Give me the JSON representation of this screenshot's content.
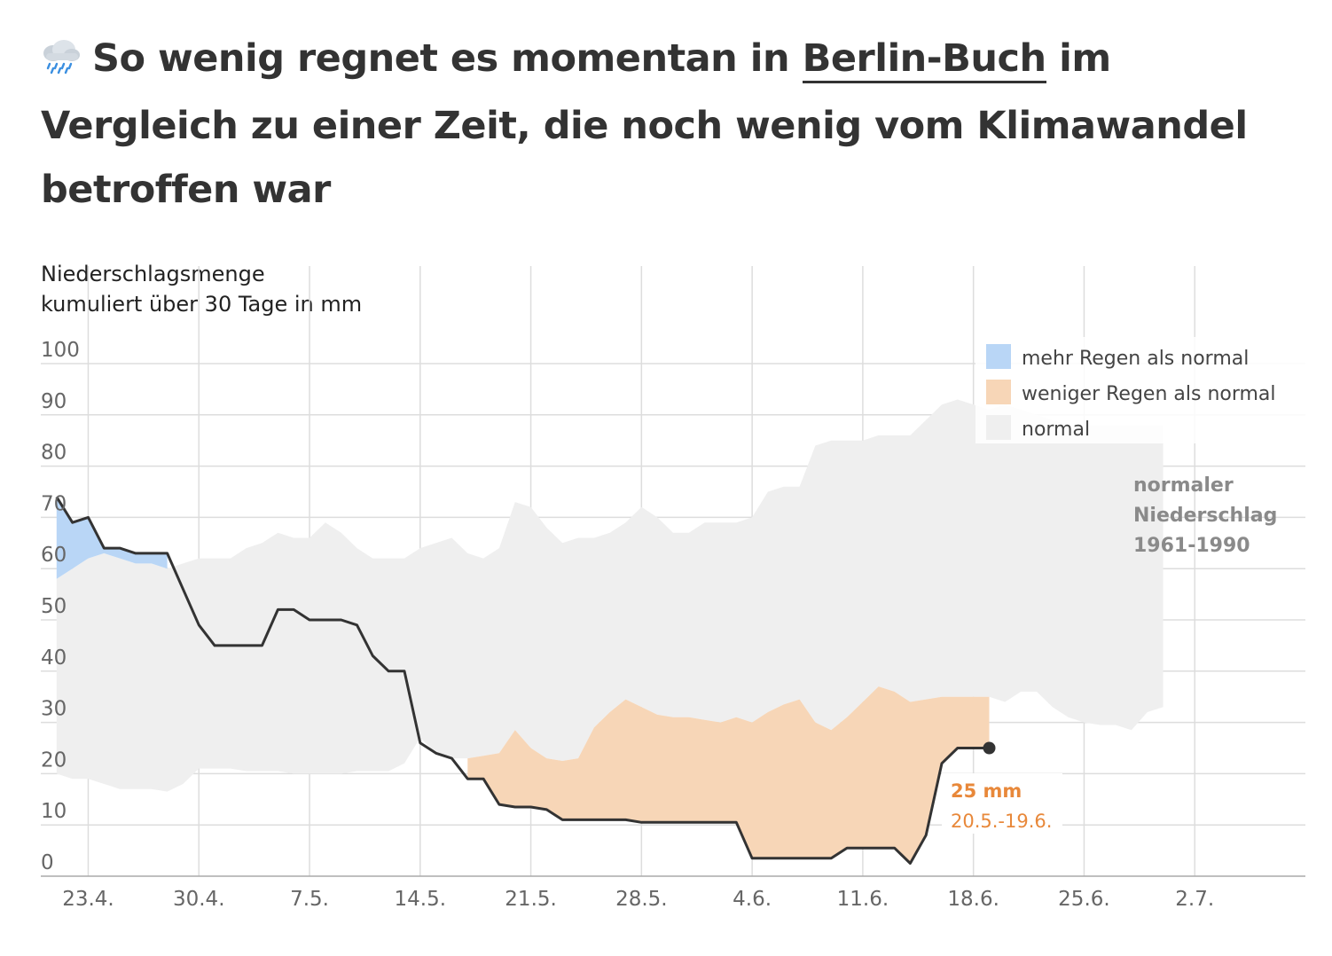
{
  "title": {
    "icon": "rain-cloud-icon",
    "before": "So wenig regnet es momentan in ",
    "location": "Berlin-Buch",
    "after": " im Vergleich zu einer Zeit, die noch wenig vom Klimawandel betroffen war"
  },
  "colors": {
    "more_rain": "#b9d6f6",
    "less_rain": "#f7d6b7",
    "normal": "#efefef",
    "line": "#333333",
    "highlight": "#e8883a",
    "grid": "#dddddd"
  },
  "chart_data": {
    "type": "area",
    "ylabel_line1": "Niederschlagsmenge",
    "ylabel_line2": "kumuliert über 30 Tage in mm",
    "ylim": [
      0,
      100
    ],
    "y_ticks": [
      0,
      10,
      20,
      30,
      40,
      50,
      60,
      70,
      80,
      90,
      100
    ],
    "x_range": [
      "2024-04-20",
      "2024-07-09"
    ],
    "x_ticks": [
      {
        "date": "2024-04-23",
        "label": "23.4."
      },
      {
        "date": "2024-04-30",
        "label": "30.4."
      },
      {
        "date": "2024-05-07",
        "label": "7.5."
      },
      {
        "date": "2024-05-14",
        "label": "14.5."
      },
      {
        "date": "2024-05-21",
        "label": "21.5."
      },
      {
        "date": "2024-05-28",
        "label": "28.5."
      },
      {
        "date": "2024-06-04",
        "label": "4.6."
      },
      {
        "date": "2024-06-11",
        "label": "11.6."
      },
      {
        "date": "2024-06-18",
        "label": "18.6."
      },
      {
        "date": "2024-06-25",
        "label": "25.6."
      },
      {
        "date": "2024-07-02",
        "label": "2.7."
      }
    ],
    "legend": [
      {
        "key": "more_rain",
        "label": "mehr Regen als normal"
      },
      {
        "key": "less_rain",
        "label": "weniger Regen als normal"
      },
      {
        "key": "normal",
        "label": "normal"
      }
    ],
    "legend_position": "top-right",
    "normal_band_label": [
      "normaler",
      "Niederschlag",
      "1961-1990"
    ],
    "normal_band": [
      {
        "date": "2024-04-21",
        "low": 20,
        "high": 58
      },
      {
        "date": "2024-04-22",
        "low": 19,
        "high": 60
      },
      {
        "date": "2024-04-23",
        "low": 19,
        "high": 62
      },
      {
        "date": "2024-04-24",
        "low": 18,
        "high": 63
      },
      {
        "date": "2024-04-25",
        "low": 17,
        "high": 62
      },
      {
        "date": "2024-04-26",
        "low": 17,
        "high": 61
      },
      {
        "date": "2024-04-27",
        "low": 17,
        "high": 61
      },
      {
        "date": "2024-04-28",
        "low": 16.5,
        "high": 60
      },
      {
        "date": "2024-04-29",
        "low": 18,
        "high": 61
      },
      {
        "date": "2024-04-30",
        "low": 21,
        "high": 62
      },
      {
        "date": "2024-05-01",
        "low": 21,
        "high": 62
      },
      {
        "date": "2024-05-02",
        "low": 21,
        "high": 62
      },
      {
        "date": "2024-05-03",
        "low": 20.5,
        "high": 64
      },
      {
        "date": "2024-05-04",
        "low": 20.5,
        "high": 65
      },
      {
        "date": "2024-05-05",
        "low": 20.5,
        "high": 67
      },
      {
        "date": "2024-05-06",
        "low": 20,
        "high": 66
      },
      {
        "date": "2024-05-07",
        "low": 20,
        "high": 66
      },
      {
        "date": "2024-05-08",
        "low": 20,
        "high": 69
      },
      {
        "date": "2024-05-09",
        "low": 20,
        "high": 67
      },
      {
        "date": "2024-05-10",
        "low": 20.5,
        "high": 64
      },
      {
        "date": "2024-05-11",
        "low": 20.5,
        "high": 62
      },
      {
        "date": "2024-05-12",
        "low": 20.5,
        "high": 62
      },
      {
        "date": "2024-05-13",
        "low": 22,
        "high": 62
      },
      {
        "date": "2024-05-14",
        "low": 27,
        "high": 64
      },
      {
        "date": "2024-05-15",
        "low": 24,
        "high": 65
      },
      {
        "date": "2024-05-16",
        "low": 23,
        "high": 66
      },
      {
        "date": "2024-05-17",
        "low": 23,
        "high": 63
      },
      {
        "date": "2024-05-18",
        "low": 23.5,
        "high": 62
      },
      {
        "date": "2024-05-19",
        "low": 24,
        "high": 64
      },
      {
        "date": "2024-05-20",
        "low": 28.5,
        "high": 73
      },
      {
        "date": "2024-05-21",
        "low": 25,
        "high": 72
      },
      {
        "date": "2024-05-22",
        "low": 23,
        "high": 68
      },
      {
        "date": "2024-05-23",
        "low": 22.5,
        "high": 65
      },
      {
        "date": "2024-05-24",
        "low": 23,
        "high": 66
      },
      {
        "date": "2024-05-25",
        "low": 29,
        "high": 66
      },
      {
        "date": "2024-05-26",
        "low": 32,
        "high": 67
      },
      {
        "date": "2024-05-27",
        "low": 34.5,
        "high": 69
      },
      {
        "date": "2024-05-28",
        "low": 33,
        "high": 72
      },
      {
        "date": "2024-05-29",
        "low": 31.5,
        "high": 70
      },
      {
        "date": "2024-05-30",
        "low": 31,
        "high": 67
      },
      {
        "date": "2024-05-31",
        "low": 31,
        "high": 67
      },
      {
        "date": "2024-06-01",
        "low": 30.5,
        "high": 69
      },
      {
        "date": "2024-06-02",
        "low": 30,
        "high": 69
      },
      {
        "date": "2024-06-03",
        "low": 31,
        "high": 69
      },
      {
        "date": "2024-06-04",
        "low": 30,
        "high": 70
      },
      {
        "date": "2024-06-05",
        "low": 32,
        "high": 75
      },
      {
        "date": "2024-06-06",
        "low": 33.5,
        "high": 76
      },
      {
        "date": "2024-06-07",
        "low": 34.5,
        "high": 76
      },
      {
        "date": "2024-06-08",
        "low": 30,
        "high": 84
      },
      {
        "date": "2024-06-09",
        "low": 28.5,
        "high": 85
      },
      {
        "date": "2024-06-10",
        "low": 31,
        "high": 85
      },
      {
        "date": "2024-06-11",
        "low": 34,
        "high": 85
      },
      {
        "date": "2024-06-12",
        "low": 37,
        "high": 86
      },
      {
        "date": "2024-06-13",
        "low": 36,
        "high": 86
      },
      {
        "date": "2024-06-14",
        "low": 34,
        "high": 86
      },
      {
        "date": "2024-06-15",
        "low": 34.5,
        "high": 89
      },
      {
        "date": "2024-06-16",
        "low": 35,
        "high": 92
      },
      {
        "date": "2024-06-17",
        "low": 35,
        "high": 93
      },
      {
        "date": "2024-06-18",
        "low": 35,
        "high": 92
      },
      {
        "date": "2024-06-19",
        "low": 35,
        "high": 91
      },
      {
        "date": "2024-06-20",
        "low": 34,
        "high": 92
      },
      {
        "date": "2024-06-21",
        "low": 36,
        "high": 91
      },
      {
        "date": "2024-06-22",
        "low": 36,
        "high": 90
      },
      {
        "date": "2024-06-23",
        "low": 33,
        "high": 89
      },
      {
        "date": "2024-06-24",
        "low": 31,
        "high": 88
      },
      {
        "date": "2024-06-25",
        "low": 30,
        "high": 88
      },
      {
        "date": "2024-06-26",
        "low": 29.5,
        "high": 88
      },
      {
        "date": "2024-06-27",
        "low": 29.5,
        "high": 88
      },
      {
        "date": "2024-06-28",
        "low": 28.5,
        "high": 88
      },
      {
        "date": "2024-06-29",
        "low": 32,
        "high": 88
      },
      {
        "date": "2024-06-30",
        "low": 33,
        "high": 88
      }
    ],
    "series": [
      {
        "points": [
          {
            "date": "2024-04-21",
            "value": 74
          },
          {
            "date": "2024-04-22",
            "value": 69
          },
          {
            "date": "2024-04-23",
            "value": 70
          },
          {
            "date": "2024-04-24",
            "value": 64
          },
          {
            "date": "2024-04-25",
            "value": 64
          },
          {
            "date": "2024-04-26",
            "value": 63
          },
          {
            "date": "2024-04-27",
            "value": 63
          },
          {
            "date": "2024-04-28",
            "value": 63
          },
          {
            "date": "2024-04-29",
            "value": 56
          },
          {
            "date": "2024-04-30",
            "value": 49
          },
          {
            "date": "2024-05-01",
            "value": 45
          },
          {
            "date": "2024-05-02",
            "value": 45
          },
          {
            "date": "2024-05-03",
            "value": 45
          },
          {
            "date": "2024-05-04",
            "value": 45
          },
          {
            "date": "2024-05-05",
            "value": 52
          },
          {
            "date": "2024-05-06",
            "value": 52
          },
          {
            "date": "2024-05-07",
            "value": 50
          },
          {
            "date": "2024-05-08",
            "value": 50
          },
          {
            "date": "2024-05-09",
            "value": 50
          },
          {
            "date": "2024-05-10",
            "value": 49
          },
          {
            "date": "2024-05-11",
            "value": 43
          },
          {
            "date": "2024-05-12",
            "value": 40
          },
          {
            "date": "2024-05-13",
            "value": 40
          },
          {
            "date": "2024-05-14",
            "value": 26
          },
          {
            "date": "2024-05-15",
            "value": 24
          },
          {
            "date": "2024-05-16",
            "value": 23
          },
          {
            "date": "2024-05-17",
            "value": 19
          },
          {
            "date": "2024-05-18",
            "value": 19
          },
          {
            "date": "2024-05-19",
            "value": 14
          },
          {
            "date": "2024-05-20",
            "value": 13.5
          },
          {
            "date": "2024-05-21",
            "value": 13.5
          },
          {
            "date": "2024-05-22",
            "value": 13
          },
          {
            "date": "2024-05-23",
            "value": 11
          },
          {
            "date": "2024-05-24",
            "value": 11
          },
          {
            "date": "2024-05-25",
            "value": 11
          },
          {
            "date": "2024-05-26",
            "value": 11
          },
          {
            "date": "2024-05-27",
            "value": 11
          },
          {
            "date": "2024-05-28",
            "value": 10.5
          },
          {
            "date": "2024-05-29",
            "value": 10.5
          },
          {
            "date": "2024-05-30",
            "value": 10.5
          },
          {
            "date": "2024-05-31",
            "value": 10.5
          },
          {
            "date": "2024-06-01",
            "value": 10.5
          },
          {
            "date": "2024-06-02",
            "value": 10.5
          },
          {
            "date": "2024-06-03",
            "value": 10.5
          },
          {
            "date": "2024-06-04",
            "value": 3.5
          },
          {
            "date": "2024-06-05",
            "value": 3.5
          },
          {
            "date": "2024-06-06",
            "value": 3.5
          },
          {
            "date": "2024-06-07",
            "value": 3.5
          },
          {
            "date": "2024-06-08",
            "value": 3.5
          },
          {
            "date": "2024-06-09",
            "value": 3.5
          },
          {
            "date": "2024-06-10",
            "value": 5.5
          },
          {
            "date": "2024-06-11",
            "value": 5.5
          },
          {
            "date": "2024-06-12",
            "value": 5.5
          },
          {
            "date": "2024-06-13",
            "value": 5.5
          },
          {
            "date": "2024-06-14",
            "value": 2.5
          },
          {
            "date": "2024-06-15",
            "value": 8
          },
          {
            "date": "2024-06-16",
            "value": 22
          },
          {
            "date": "2024-06-17",
            "value": 25
          },
          {
            "date": "2024-06-18",
            "value": 25
          },
          {
            "date": "2024-06-19",
            "value": 25
          }
        ]
      }
    ],
    "current": {
      "value_label": "25 mm",
      "period_label": "20.5.-19.6."
    }
  }
}
